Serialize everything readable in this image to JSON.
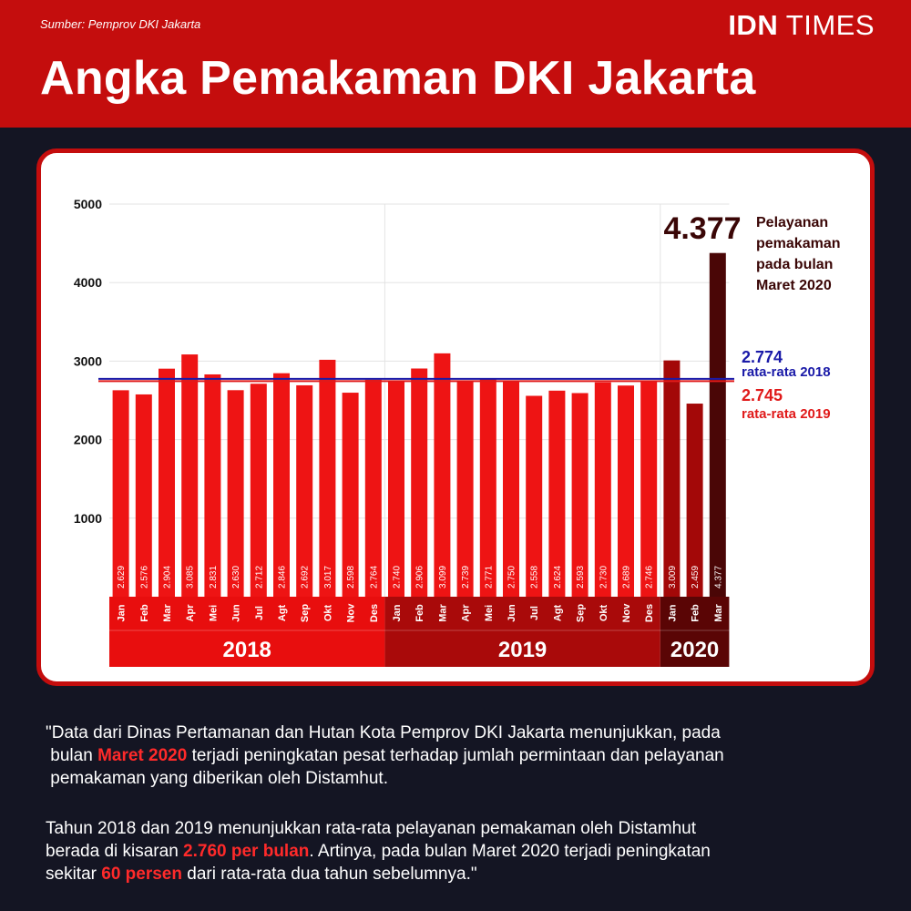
{
  "header": {
    "source": "Sumber: Pemprov DKI Jakarta",
    "brand_bold": "IDN",
    "brand_light": "TIMES",
    "title": "Angka Pemakaman DKI Jakarta"
  },
  "colors": {
    "red": "#c40d0d",
    "bar_2018_2019": "#ee1414",
    "bar_2020": "#a30808",
    "bar_peak": "#4a0606",
    "band_2018": "#e80e0e",
    "band_2019": "#a90a0a",
    "band_2020": "#5a0505",
    "avg_2018": "#1a1aa8",
    "avg_2019": "#e01a1a",
    "background": "#141523"
  },
  "chart_data": {
    "type": "bar",
    "ylim": [
      0,
      5000
    ],
    "yticks": [
      "1000",
      "2000",
      "3000",
      "4000",
      "5000"
    ],
    "grid": true,
    "categories": [
      "Jan",
      "Feb",
      "Mar",
      "Apr",
      "Mei",
      "Jun",
      "Jul",
      "Agt",
      "Sep",
      "Okt",
      "Nov",
      "Des",
      "Jan",
      "Feb",
      "Mar",
      "Apr",
      "Mei",
      "Jun",
      "Jul",
      "Agt",
      "Sep",
      "Okt",
      "Nov",
      "Des",
      "Jan",
      "Feb",
      "Mar"
    ],
    "years": [
      "2018",
      "2018",
      "2018",
      "2018",
      "2018",
      "2018",
      "2018",
      "2018",
      "2018",
      "2018",
      "2018",
      "2018",
      "2019",
      "2019",
      "2019",
      "2019",
      "2019",
      "2019",
      "2019",
      "2019",
      "2019",
      "2019",
      "2019",
      "2019",
      "2020",
      "2020",
      "2020"
    ],
    "values": [
      2629,
      2576,
      2904,
      3085,
      2831,
      2630,
      2712,
      2846,
      2692,
      3017,
      2598,
      2764,
      2740,
      2906,
      3099,
      2739,
      2771,
      2750,
      2558,
      2624,
      2593,
      2730,
      2689,
      2746,
      3009,
      2459,
      4377
    ],
    "value_labels": [
      "2.629",
      "2.576",
      "2.904",
      "3.085",
      "2.831",
      "2.630",
      "2.712",
      "2.846",
      "2.692",
      "3.017",
      "2.598",
      "2.764",
      "2.740",
      "2.906",
      "3.099",
      "2.739",
      "2.771",
      "2.750",
      "2.558",
      "2.624",
      "2.593",
      "2.730",
      "2.689",
      "2.746",
      "3.009",
      "2.459",
      "4.377"
    ],
    "year_groups": [
      {
        "label": "2018",
        "count": 12
      },
      {
        "label": "2019",
        "count": 12
      },
      {
        "label": "2020",
        "count": 3
      }
    ],
    "reference_lines": [
      {
        "value": 2774,
        "value_label": "2.774",
        "label": "rata-rata 2018"
      },
      {
        "value": 2745,
        "value_label": "2.745",
        "label": "rata-rata 2019"
      }
    ],
    "annotation": {
      "value_label": "4.377",
      "lines": [
        "Pelayanan",
        "pemakaman",
        "pada bulan",
        "Maret 2020"
      ]
    }
  },
  "quote1": {
    "line1": "\"Data dari Dinas Pertamanan dan Hutan Kota Pemprov DKI Jakarta menunjukkan, pada",
    "line2_pre": "bulan ",
    "line2_hl": "Maret 2020",
    "line2_post": " terjadi peningkatan pesat terhadap jumlah permintaan dan pelayanan",
    "line3": "pemakaman yang diberikan oleh Distamhut."
  },
  "quote2": {
    "line1": "Tahun 2018 dan 2019 menunjukkan rata-rata pelayanan pemakaman oleh Distamhut",
    "line2_pre": "berada di kisaran ",
    "line2_hl": "2.760 per bulan",
    "line2_post": ". Artinya, pada bulan Maret 2020 terjadi peningkatan",
    "line3_pre": "sekitar ",
    "line3_hl": "60 persen",
    "line3_post": " dari rata-rata dua tahun sebelumnya.\""
  }
}
